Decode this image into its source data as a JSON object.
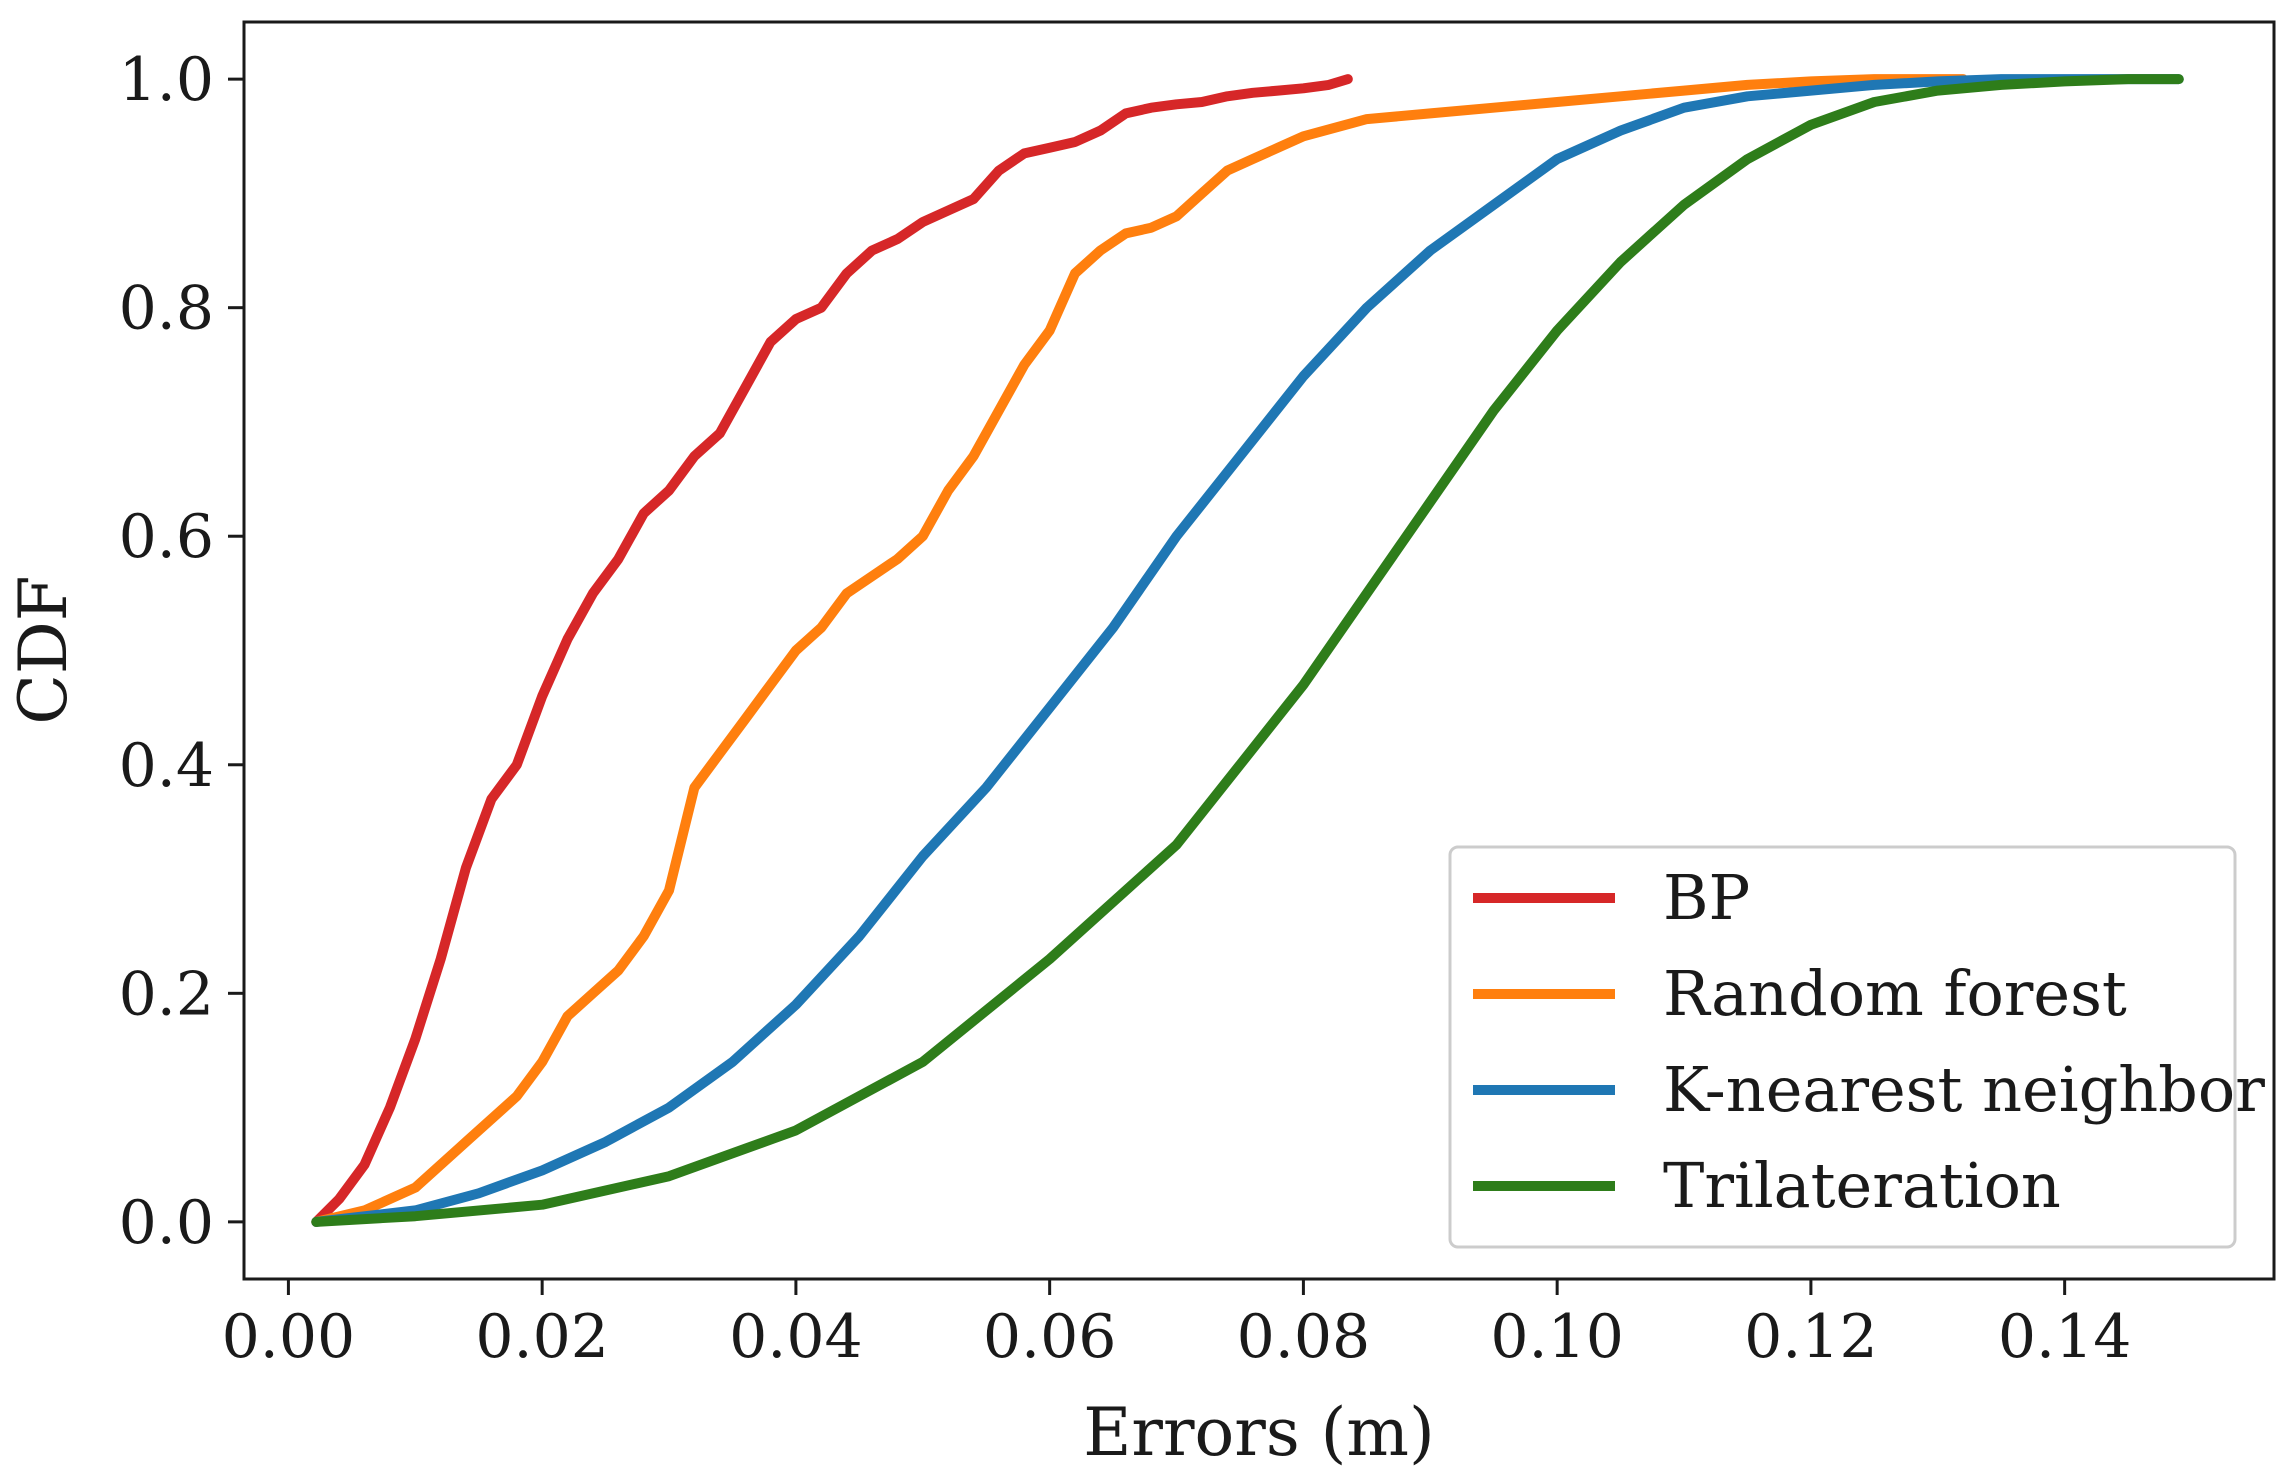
{
  "chart_data": {
    "type": "line",
    "title": "",
    "xlabel": "Errors  (m)",
    "ylabel": "CDF",
    "xlim": [
      -0.0035,
      0.1565
    ],
    "ylim": [
      -0.05,
      1.05
    ],
    "xticks": [
      0.0,
      0.02,
      0.04,
      0.06,
      0.08,
      0.1,
      0.12,
      0.14
    ],
    "xtick_labels": [
      "0.00",
      "0.02",
      "0.04",
      "0.06",
      "0.08",
      "0.10",
      "0.12",
      "0.14"
    ],
    "yticks": [
      0.0,
      0.2,
      0.4,
      0.6,
      0.8,
      1.0
    ],
    "ytick_labels": [
      "0.0",
      "0.2",
      "0.4",
      "0.6",
      "0.8",
      "1.0"
    ],
    "grid": false,
    "legend_position": "lower-right",
    "series": [
      {
        "name": "BP",
        "color": "#d62728",
        "points": [
          [
            0.0022,
            0.0
          ],
          [
            0.004,
            0.02
          ],
          [
            0.006,
            0.05
          ],
          [
            0.008,
            0.1
          ],
          [
            0.01,
            0.16
          ],
          [
            0.012,
            0.23
          ],
          [
            0.014,
            0.31
          ],
          [
            0.016,
            0.37
          ],
          [
            0.018,
            0.4
          ],
          [
            0.02,
            0.46
          ],
          [
            0.022,
            0.51
          ],
          [
            0.024,
            0.55
          ],
          [
            0.026,
            0.58
          ],
          [
            0.028,
            0.62
          ],
          [
            0.03,
            0.64
          ],
          [
            0.032,
            0.67
          ],
          [
            0.034,
            0.69
          ],
          [
            0.036,
            0.73
          ],
          [
            0.038,
            0.77
          ],
          [
            0.04,
            0.79
          ],
          [
            0.042,
            0.8
          ],
          [
            0.044,
            0.83
          ],
          [
            0.046,
            0.85
          ],
          [
            0.048,
            0.86
          ],
          [
            0.05,
            0.875
          ],
          [
            0.052,
            0.885
          ],
          [
            0.054,
            0.895
          ],
          [
            0.056,
            0.92
          ],
          [
            0.058,
            0.935
          ],
          [
            0.06,
            0.94
          ],
          [
            0.062,
            0.945
          ],
          [
            0.064,
            0.955
          ],
          [
            0.066,
            0.97
          ],
          [
            0.068,
            0.975
          ],
          [
            0.07,
            0.978
          ],
          [
            0.072,
            0.98
          ],
          [
            0.074,
            0.985
          ],
          [
            0.076,
            0.988
          ],
          [
            0.078,
            0.99
          ],
          [
            0.08,
            0.992
          ],
          [
            0.082,
            0.995
          ],
          [
            0.0835,
            1.0
          ]
        ]
      },
      {
        "name": "Random forest",
        "color": "#ff7f0e",
        "points": [
          [
            0.0022,
            0.0
          ],
          [
            0.006,
            0.01
          ],
          [
            0.01,
            0.03
          ],
          [
            0.014,
            0.07
          ],
          [
            0.018,
            0.11
          ],
          [
            0.02,
            0.14
          ],
          [
            0.022,
            0.18
          ],
          [
            0.024,
            0.2
          ],
          [
            0.026,
            0.22
          ],
          [
            0.028,
            0.25
          ],
          [
            0.03,
            0.29
          ],
          [
            0.032,
            0.38
          ],
          [
            0.034,
            0.41
          ],
          [
            0.036,
            0.44
          ],
          [
            0.038,
            0.47
          ],
          [
            0.04,
            0.5
          ],
          [
            0.042,
            0.52
          ],
          [
            0.044,
            0.55
          ],
          [
            0.046,
            0.565
          ],
          [
            0.048,
            0.58
          ],
          [
            0.05,
            0.6
          ],
          [
            0.052,
            0.64
          ],
          [
            0.054,
            0.67
          ],
          [
            0.056,
            0.71
          ],
          [
            0.058,
            0.75
          ],
          [
            0.06,
            0.78
          ],
          [
            0.062,
            0.83
          ],
          [
            0.064,
            0.85
          ],
          [
            0.066,
            0.865
          ],
          [
            0.068,
            0.87
          ],
          [
            0.07,
            0.88
          ],
          [
            0.072,
            0.9
          ],
          [
            0.074,
            0.92
          ],
          [
            0.076,
            0.93
          ],
          [
            0.078,
            0.94
          ],
          [
            0.08,
            0.95
          ],
          [
            0.085,
            0.965
          ],
          [
            0.09,
            0.97
          ],
          [
            0.095,
            0.975
          ],
          [
            0.1,
            0.98
          ],
          [
            0.105,
            0.985
          ],
          [
            0.11,
            0.99
          ],
          [
            0.115,
            0.995
          ],
          [
            0.12,
            0.998
          ],
          [
            0.125,
            1.0
          ],
          [
            0.132,
            1.0
          ]
        ]
      },
      {
        "name": "K-nearest neighbor",
        "color": "#1f77b4",
        "points": [
          [
            0.0022,
            0.0
          ],
          [
            0.01,
            0.01
          ],
          [
            0.015,
            0.025
          ],
          [
            0.02,
            0.045
          ],
          [
            0.025,
            0.07
          ],
          [
            0.03,
            0.1
          ],
          [
            0.035,
            0.14
          ],
          [
            0.04,
            0.19
          ],
          [
            0.045,
            0.25
          ],
          [
            0.05,
            0.32
          ],
          [
            0.055,
            0.38
          ],
          [
            0.06,
            0.45
          ],
          [
            0.065,
            0.52
          ],
          [
            0.07,
            0.6
          ],
          [
            0.075,
            0.67
          ],
          [
            0.08,
            0.74
          ],
          [
            0.085,
            0.8
          ],
          [
            0.09,
            0.85
          ],
          [
            0.095,
            0.89
          ],
          [
            0.1,
            0.93
          ],
          [
            0.105,
            0.955
          ],
          [
            0.11,
            0.975
          ],
          [
            0.115,
            0.985
          ],
          [
            0.12,
            0.99
          ],
          [
            0.125,
            0.995
          ],
          [
            0.13,
            0.998
          ],
          [
            0.135,
            1.0
          ],
          [
            0.149,
            1.0
          ]
        ]
      },
      {
        "name": "Trilateration",
        "color": "#2e7d1a",
        "points": [
          [
            0.0022,
            0.0
          ],
          [
            0.01,
            0.005
          ],
          [
            0.02,
            0.015
          ],
          [
            0.03,
            0.04
          ],
          [
            0.04,
            0.08
          ],
          [
            0.05,
            0.14
          ],
          [
            0.06,
            0.23
          ],
          [
            0.07,
            0.33
          ],
          [
            0.075,
            0.4
          ],
          [
            0.08,
            0.47
          ],
          [
            0.085,
            0.55
          ],
          [
            0.09,
            0.63
          ],
          [
            0.095,
            0.71
          ],
          [
            0.1,
            0.78
          ],
          [
            0.105,
            0.84
          ],
          [
            0.11,
            0.89
          ],
          [
            0.115,
            0.93
          ],
          [
            0.12,
            0.96
          ],
          [
            0.125,
            0.98
          ],
          [
            0.13,
            0.99
          ],
          [
            0.135,
            0.995
          ],
          [
            0.14,
            0.998
          ],
          [
            0.145,
            1.0
          ],
          [
            0.149,
            1.0
          ]
        ]
      }
    ]
  }
}
